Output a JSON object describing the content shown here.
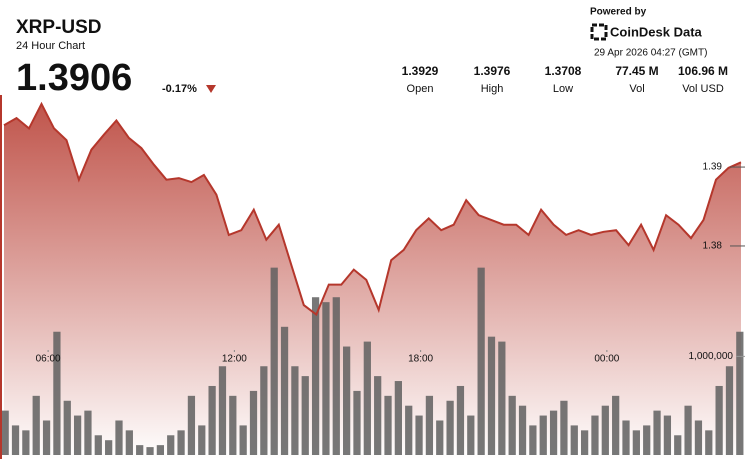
{
  "header": {
    "symbol": "XRP-USD",
    "subtitle": "24 Hour Chart",
    "price": 1.3906,
    "change": {
      "value": -0.17,
      "label": "-0.17%"
    },
    "powered_by": "Powered by",
    "brand": "CoinDesk Data",
    "timestamp": "29 Apr 2026 04:27 (GMT)",
    "stats": [
      {
        "value": "1.3929",
        "label": "Open"
      },
      {
        "value": "1.3976",
        "label": "High"
      },
      {
        "value": "1.3708",
        "label": "Low"
      },
      {
        "value": "77.45 M",
        "label": "Vol"
      },
      {
        "value": "106.96 M",
        "label": "Vol USD"
      }
    ]
  },
  "chart_data": [
    {
      "type": "area",
      "color": "#b5372c",
      "ylim": [
        1.353,
        1.3985
      ],
      "yticks": [
        1.39,
        1.38
      ],
      "xlim": [
        0,
        24
      ],
      "xticks": [
        {
          "value": 1.55,
          "label": "06:00"
        },
        {
          "value": 7.55,
          "label": "12:00"
        },
        {
          "value": 13.55,
          "label": "18:00"
        },
        {
          "value": 19.55,
          "label": "00:00"
        }
      ],
      "values": [
        1.3953,
        1.3962,
        1.3949,
        1.398,
        1.3949,
        1.3934,
        1.3884,
        1.3922,
        1.3941,
        1.3959,
        1.3937,
        1.3924,
        1.3903,
        1.3884,
        1.3886,
        1.3881,
        1.389,
        1.3865,
        1.3814,
        1.382,
        1.3846,
        1.3808,
        1.3827,
        1.3776,
        1.3725,
        1.3713,
        1.3751,
        1.3751,
        1.377,
        1.3757,
        1.3719,
        1.3782,
        1.3795,
        1.382,
        1.3835,
        1.382,
        1.3827,
        1.3858,
        1.3839,
        1.3833,
        1.3827,
        1.3827,
        1.3814,
        1.3846,
        1.3827,
        1.3814,
        1.382,
        1.3814,
        1.3818,
        1.382,
        1.3801,
        1.3827,
        1.3795,
        1.3839,
        1.3827,
        1.381,
        1.3833,
        1.3884,
        1.3899,
        1.3906
      ]
    },
    {
      "type": "bar",
      "color": "#5f5f5f",
      "ylim": [
        0,
        3600000
      ],
      "yticks": [
        {
          "value": 1000000,
          "label": "1,000,000"
        }
      ],
      "values": [
        450000,
        300000,
        250000,
        600000,
        350000,
        1250000,
        550000,
        400000,
        450000,
        200000,
        150000,
        350000,
        250000,
        100000,
        80000,
        100000,
        200000,
        250000,
        600000,
        300000,
        700000,
        900000,
        600000,
        300000,
        650000,
        900000,
        1900000,
        1300000,
        900000,
        800000,
        1600000,
        1550000,
        1600000,
        1100000,
        650000,
        1150000,
        800000,
        600000,
        750000,
        500000,
        400000,
        600000,
        350000,
        550000,
        700000,
        400000,
        1900000,
        1200000,
        1150000,
        600000,
        500000,
        300000,
        400000,
        450000,
        550000,
        300000,
        250000,
        400000,
        500000,
        600000,
        350000,
        250000,
        300000,
        450000,
        400000,
        200000,
        500000,
        350000,
        250000,
        700000,
        900000,
        1250000
      ]
    }
  ]
}
